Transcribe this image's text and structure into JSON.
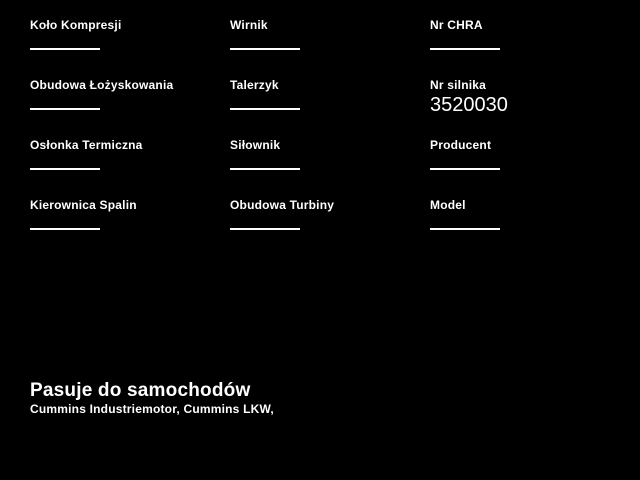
{
  "page": {
    "background": "#000000",
    "text_color": "#ffffff"
  },
  "parts_form": {
    "fields": [
      {
        "label": "Koło Kompresji",
        "value": ""
      },
      {
        "label": "Wirnik",
        "value": ""
      },
      {
        "label": "Nr CHRA",
        "value": ""
      },
      {
        "label": "Obudowa Łożyskowania",
        "value": ""
      },
      {
        "label": "Talerzyk",
        "value": ""
      },
      {
        "label": "Nr silnika",
        "value": "3520030"
      },
      {
        "label": "Osłonka Termiczna",
        "value": ""
      },
      {
        "label": "Siłownik",
        "value": ""
      },
      {
        "label": "Producent",
        "value": ""
      },
      {
        "label": "Kierownica Spalin",
        "value": ""
      },
      {
        "label": "Obudowa Turbiny",
        "value": ""
      },
      {
        "label": "Model",
        "value": ""
      }
    ]
  },
  "compatibility": {
    "heading": "Pasuje do samochodów",
    "models": "Cummins Industriemotor, Cummins LKW,"
  }
}
